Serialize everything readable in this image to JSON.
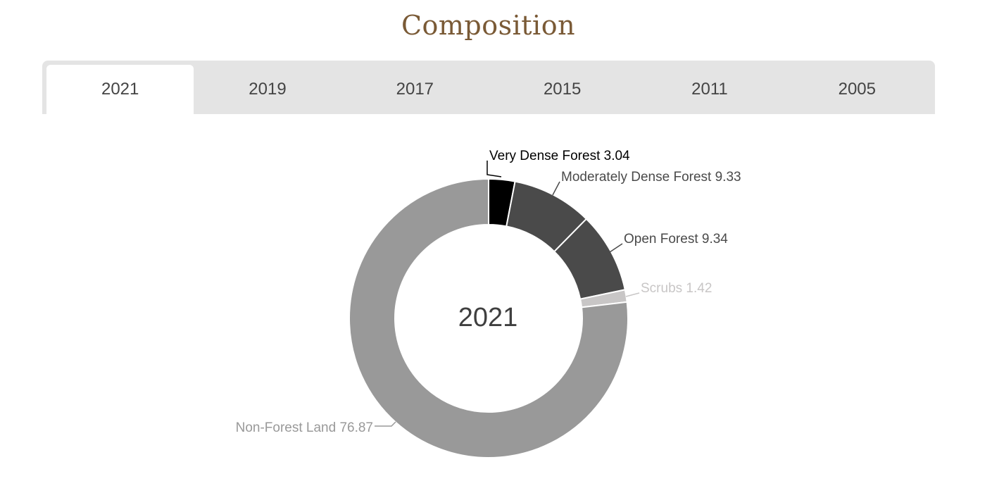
{
  "header": {
    "title": "Composition"
  },
  "tabs": [
    {
      "label": "2021",
      "active": true
    },
    {
      "label": "2019",
      "active": false
    },
    {
      "label": "2017",
      "active": false
    },
    {
      "label": "2015",
      "active": false
    },
    {
      "label": "2011",
      "active": false
    },
    {
      "label": "2005",
      "active": false
    }
  ],
  "chart_data": {
    "type": "pie",
    "subtype": "donut",
    "center_label": "2021",
    "slices": [
      {
        "name": "Very Dense Forest",
        "value": 3.04,
        "label": "Very Dense Forest 3.04",
        "color": "#000000",
        "label_color": "#000000"
      },
      {
        "name": "Moderately Dense Forest",
        "value": 9.33,
        "label": "Moderately Dense Forest 9.33",
        "color": "#4a4a4a",
        "label_color": "#4a4a4a"
      },
      {
        "name": "Open Forest",
        "value": 9.34,
        "label": "Open Forest 9.34",
        "color": "#4a4a4a",
        "label_color": "#4a4a4a"
      },
      {
        "name": "Scrubs",
        "value": 1.42,
        "label": "Scrubs 1.42",
        "color": "#c8c6c6",
        "label_color": "#c8c6c6"
      },
      {
        "name": "Non-Forest Land",
        "value": 76.87,
        "label": "Non-Forest Land 76.87",
        "color": "#999999",
        "label_color": "#999999"
      }
    ]
  }
}
